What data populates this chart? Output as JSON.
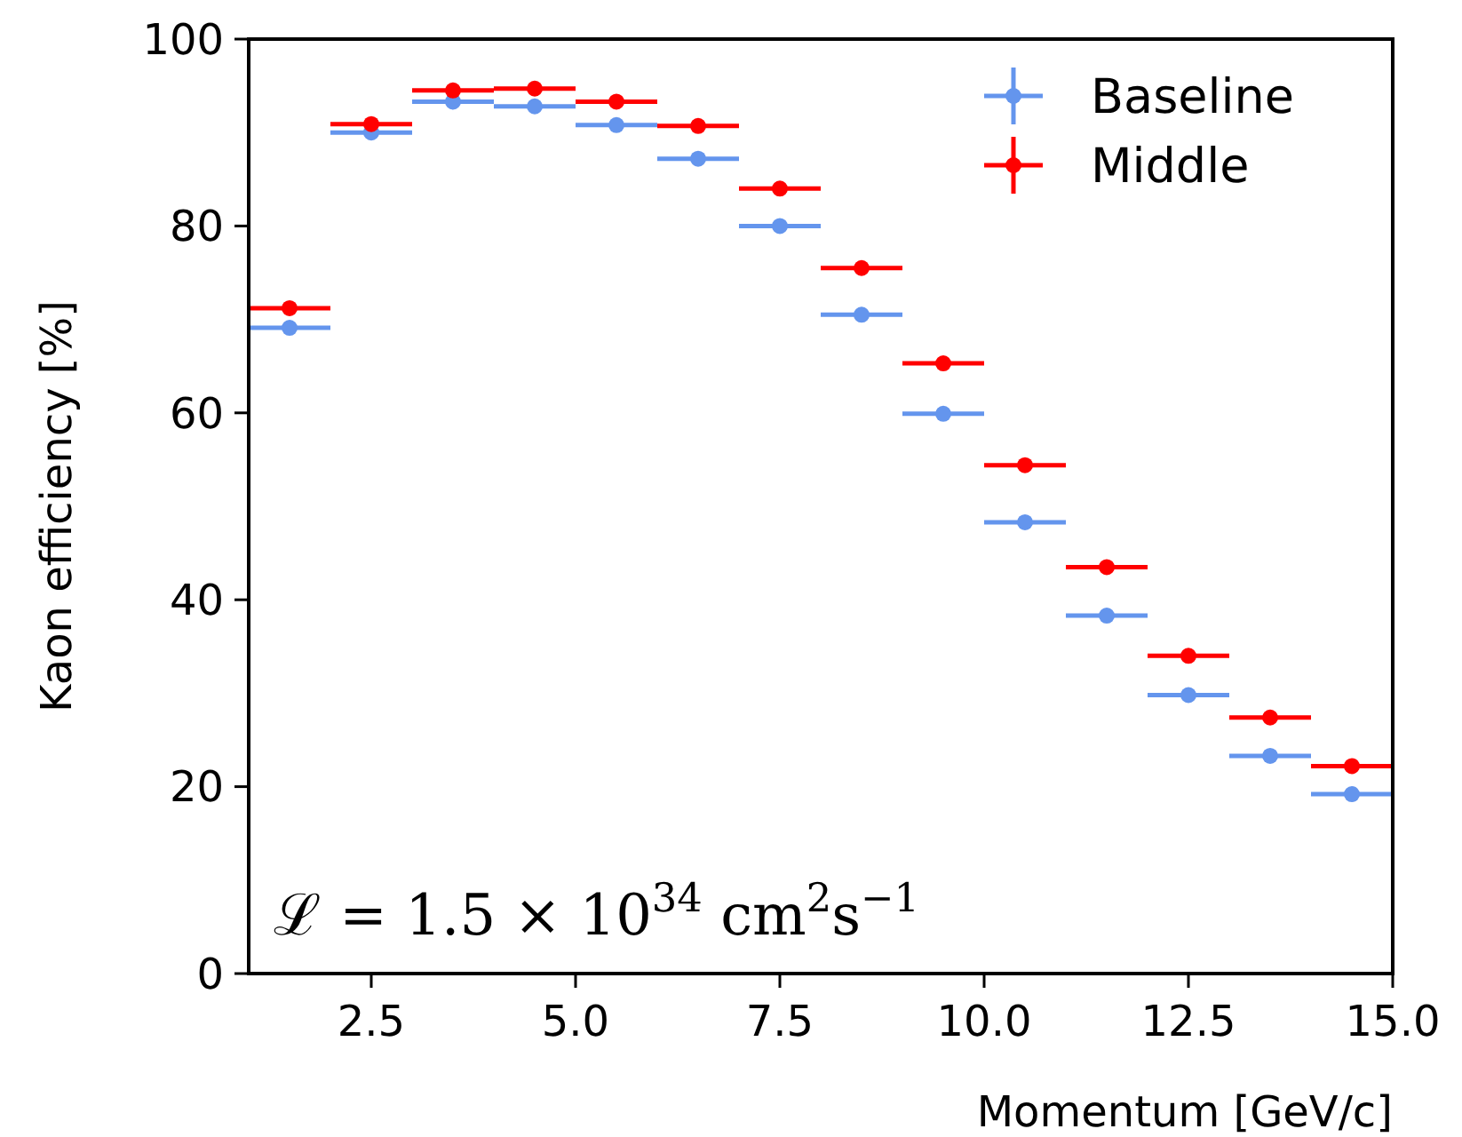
{
  "chart_data": {
    "type": "scatter",
    "xlabel": "Momentum [GeV/c]",
    "ylabel": "Kaon efficiency [%]",
    "x": [
      1.5,
      2.5,
      3.5,
      4.5,
      5.5,
      6.5,
      7.5,
      8.5,
      9.5,
      10.5,
      11.5,
      12.5,
      13.5,
      14.5
    ],
    "series": [
      {
        "name": "Baseline",
        "color": "#6495ed",
        "values": [
          69.1,
          90.0,
          93.3,
          92.8,
          90.8,
          87.2,
          80.0,
          70.5,
          59.9,
          48.3,
          38.3,
          29.8,
          23.3,
          19.2
        ],
        "xerrors": [
          0.5,
          0.5,
          0.5,
          0.5,
          0.5,
          0.5,
          0.5,
          0.5,
          0.5,
          0.5,
          0.5,
          0.5,
          0.5,
          0.5
        ]
      },
      {
        "name": "Middle",
        "color": "#ff0000",
        "values": [
          71.2,
          90.9,
          94.5,
          94.7,
          93.3,
          90.7,
          84.0,
          75.5,
          65.3,
          54.4,
          43.5,
          34.0,
          27.4,
          22.2
        ],
        "xerrors": [
          0.5,
          0.5,
          0.5,
          0.5,
          0.5,
          0.5,
          0.5,
          0.5,
          0.5,
          0.5,
          0.5,
          0.5,
          0.5,
          0.5
        ]
      }
    ],
    "xlim": [
      1,
      15
    ],
    "ylim": [
      0,
      100
    ],
    "xticks": [
      {
        "value": 2.5,
        "label": "2.5"
      },
      {
        "value": 5,
        "label": "5.0"
      },
      {
        "value": 7.5,
        "label": "7.5"
      },
      {
        "value": 10,
        "label": "10.0"
      },
      {
        "value": 12.5,
        "label": "12.5"
      },
      {
        "value": 15,
        "label": "15.0"
      }
    ],
    "yticks": [
      0,
      20,
      40,
      60,
      80,
      100
    ],
    "annotations": [
      "ℒ = 1.5 × 10$^{34}$ cm$^{2}$s$^{−1}$"
    ],
    "marker": "circle",
    "legend": "top right",
    "grid": false
  }
}
